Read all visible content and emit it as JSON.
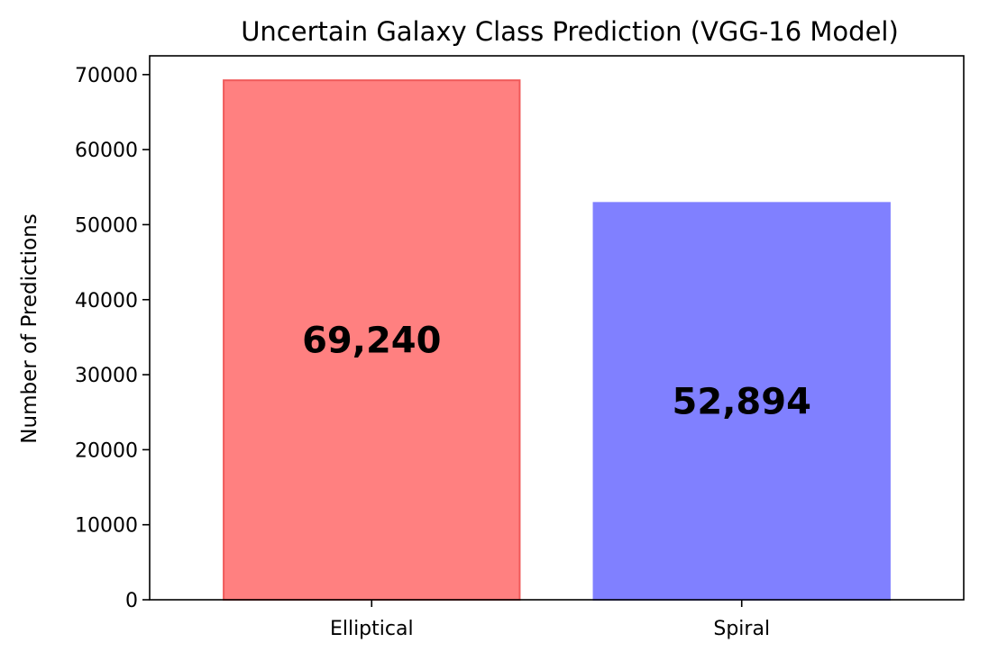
{
  "chart_data": {
    "type": "bar",
    "title": "Uncertain Galaxy Class Prediction (VGG-16 Model)",
    "xlabel": "",
    "ylabel": "Number of Predictions",
    "categories": [
      "Elliptical",
      "Spiral"
    ],
    "values": [
      69240,
      52894
    ],
    "data_labels": [
      "69,240",
      "52,894"
    ],
    "colors": [
      "#ff8080",
      "#8080ff"
    ],
    "edge_colors": [
      "#f05a5a",
      "#8080ff"
    ],
    "ylim": [
      0,
      72500
    ],
    "yticks": [
      0,
      10000,
      20000,
      30000,
      40000,
      50000,
      60000,
      70000
    ],
    "ytick_labels": [
      "0",
      "10000",
      "20000",
      "30000",
      "40000",
      "50000",
      "60000",
      "70000"
    ],
    "grid": false,
    "legend": "none"
  }
}
